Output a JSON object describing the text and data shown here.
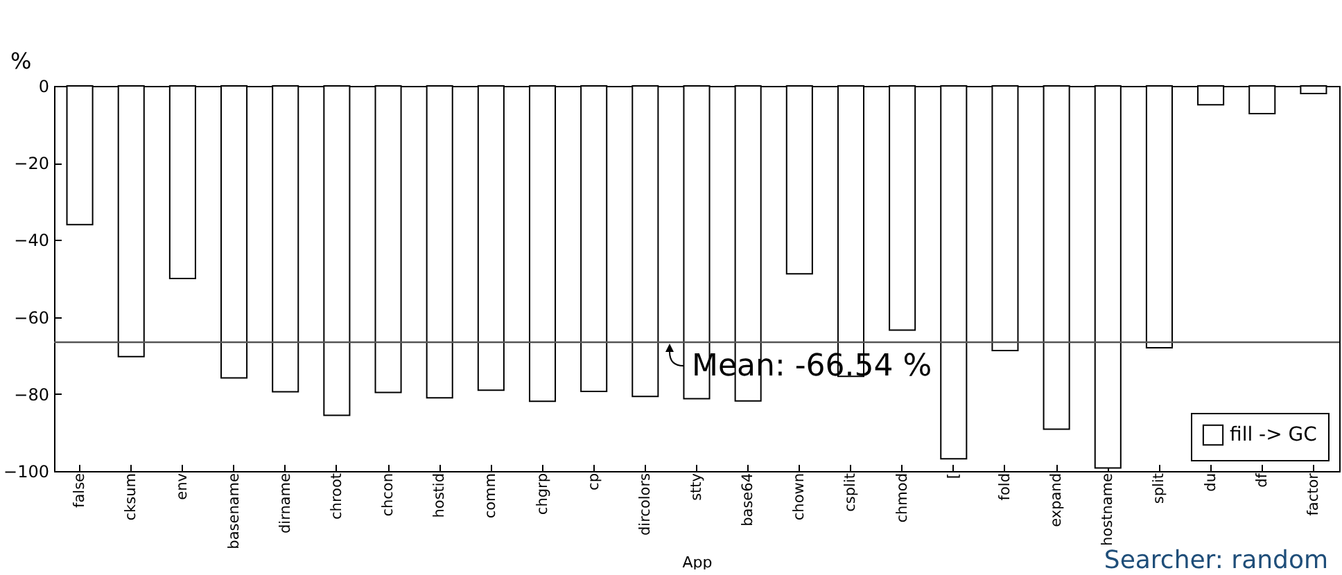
{
  "chart_data": {
    "type": "bar",
    "xlabel": "App",
    "ylabel": "%",
    "categories": [
      "false",
      "cksum",
      "env",
      "basename",
      "dirname",
      "chroot",
      "chcon",
      "hostid",
      "comm",
      "chgrp",
      "cp",
      "dircolors",
      "stty",
      "base64",
      "chown",
      "csplit",
      "chmod",
      "[",
      "fold",
      "expand",
      "hostname",
      "split",
      "du",
      "df",
      "factor"
    ],
    "series": [
      {
        "name": "fill -> GC",
        "color": "#ffffff",
        "values": [
          -36,
          -70.3,
          -50,
          -75.8,
          -79.4,
          -85.5,
          -79.6,
          -81,
          -79,
          -81.9,
          -79.3,
          -80.6,
          -81.2,
          -81.8,
          -48.8,
          -75.4,
          -63.4,
          -96.8,
          -68.7,
          -89.1,
          -99.2,
          -68,
          -4.9,
          -7.2,
          -2
        ]
      }
    ],
    "ylim": [
      -100,
      0
    ],
    "yticks": [
      -100,
      -80,
      -60,
      -40,
      -20,
      0
    ],
    "grid": false,
    "legend": "bottom right",
    "ref_lines": [
      {
        "axis": "y",
        "value": -66.54,
        "label": "Mean: -66.54 %"
      }
    ],
    "annotations": [
      "Searcher: random"
    ]
  }
}
